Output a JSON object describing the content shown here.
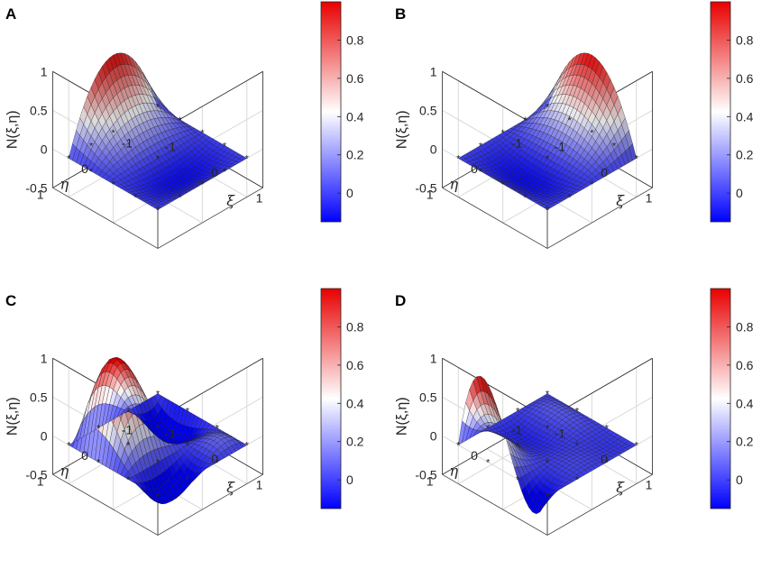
{
  "chart_data": [
    {
      "panel_label": "A",
      "type": "surface",
      "zlabel": "N(ξ,η)",
      "xlabel": "ξ",
      "ylabel": "η",
      "z_ticks": [
        "1",
        "0.5",
        "0",
        "-0.5"
      ],
      "xi_ticks": [
        "-1",
        "0",
        "1"
      ],
      "eta_ticks": [
        "1",
        "0",
        "-1"
      ],
      "zlim": [
        -0.5,
        1
      ],
      "colorbar_ticks": [
        "0.8",
        "0.6",
        "0.4",
        "0.2",
        "0"
      ],
      "colorbar_range": [
        -0.15,
        1.0
      ],
      "peak": {
        "xi": -1,
        "eta": 0,
        "height": 1.0
      }
    },
    {
      "panel_label": "B",
      "type": "surface",
      "zlabel": "N(ξ,η)",
      "xlabel": "ξ",
      "ylabel": "η",
      "z_ticks": [
        "1",
        "0.5",
        "0",
        "-0.5"
      ],
      "xi_ticks": [
        "-1",
        "0",
        "1"
      ],
      "eta_ticks": [
        "1",
        "0",
        "-1"
      ],
      "zlim": [
        -0.5,
        1
      ],
      "colorbar_ticks": [
        "0.8",
        "0.6",
        "0.4",
        "0.2",
        "0"
      ],
      "colorbar_range": [
        -0.15,
        1.0
      ],
      "peak": {
        "xi": 0,
        "eta": -1,
        "height": 1.0
      }
    },
    {
      "panel_label": "C",
      "type": "surface",
      "zlabel": "N(ξ,η)",
      "xlabel": "ξ",
      "ylabel": "η",
      "z_ticks": [
        "1",
        "0.5",
        "0",
        "-0.5"
      ],
      "xi_ticks": [
        "-1",
        "0",
        "1"
      ],
      "eta_ticks": [
        "1",
        "0",
        "-1"
      ],
      "zlim": [
        -0.5,
        1
      ],
      "colorbar_ticks": [
        "0.8",
        "0.6",
        "0.4",
        "0.2",
        "0"
      ],
      "colorbar_range": [
        -0.15,
        1.0
      ],
      "peak": {
        "xi": -0.33,
        "eta": 0.33,
        "height": 1.0
      }
    },
    {
      "panel_label": "D",
      "type": "surface",
      "zlabel": "N(ξ,η)",
      "xlabel": "ξ",
      "ylabel": "η",
      "z_ticks": [
        "1",
        "0.5",
        "0",
        "-0.5"
      ],
      "xi_ticks": [
        "-1",
        "0",
        "1"
      ],
      "eta_ticks": [
        "1",
        "0",
        "-1"
      ],
      "zlim": [
        -0.5,
        1
      ],
      "colorbar_ticks": [
        "0.8",
        "0.6",
        "0.4",
        "0.2",
        "0"
      ],
      "colorbar_range": [
        -0.15,
        1.0
      ],
      "peak": {
        "xi": -0.33,
        "eta": 1,
        "height": 1.0
      }
    }
  ],
  "colors": {
    "low": "#0000ff",
    "mid": "#ffffff",
    "high": "#e80000",
    "node": "#ff2a2a",
    "grid": "#d9d9d9",
    "axis": "#262626"
  }
}
